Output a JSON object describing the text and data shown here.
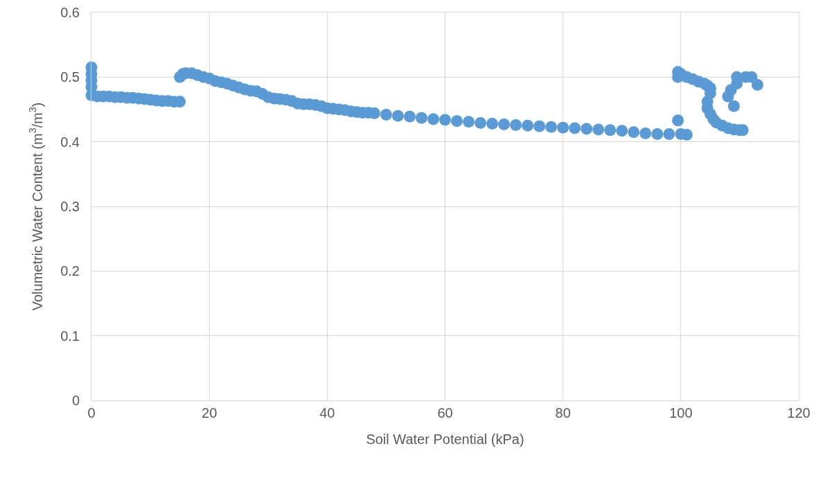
{
  "chart_data": {
    "type": "scatter",
    "xlabel": "Soil Water Potential (kPa)",
    "ylabel": "Volumetric Water Content (m$^{3}$/m$^{3}$)",
    "x": [
      0,
      0,
      0,
      0,
      0,
      1,
      2,
      3,
      4,
      5,
      6,
      7,
      8,
      9,
      10,
      11,
      12,
      13,
      14,
      15,
      15,
      15.5,
      16,
      17,
      18,
      19,
      20,
      21,
      22,
      23,
      24,
      25,
      26,
      27,
      28,
      29,
      30,
      31,
      32,
      33,
      34,
      35,
      36,
      37,
      38,
      39,
      40,
      41,
      42,
      43,
      44,
      45,
      46,
      47,
      48,
      50,
      52,
      54,
      56,
      58,
      60,
      62,
      64,
      66,
      68,
      70,
      72,
      74,
      76,
      78,
      80,
      82,
      84,
      86,
      88,
      90,
      92,
      94,
      96,
      98,
      100,
      101,
      99.5,
      99.5,
      99.5,
      100,
      101,
      102,
      103,
      104,
      104.5,
      105,
      105,
      104.5,
      104.5,
      105,
      105.5,
      106,
      107,
      108,
      109,
      110,
      110.5,
      108,
      108.5,
      109,
      109.5,
      109.5,
      111,
      112,
      113
    ],
    "series": [
      {
        "color": "#5b9bd5",
        "values": [
          0.515,
          0.505,
          0.495,
          0.485,
          0.472,
          0.47,
          0.47,
          0.47,
          0.469,
          0.469,
          0.468,
          0.468,
          0.467,
          0.466,
          0.465,
          0.464,
          0.463,
          0.463,
          0.462,
          0.462,
          0.5,
          0.505,
          0.506,
          0.506,
          0.503,
          0.5,
          0.498,
          0.494,
          0.492,
          0.49,
          0.487,
          0.484,
          0.481,
          0.479,
          0.478,
          0.474,
          0.469,
          0.467,
          0.466,
          0.465,
          0.463,
          0.459,
          0.458,
          0.458,
          0.457,
          0.455,
          0.452,
          0.451,
          0.45,
          0.449,
          0.447,
          0.446,
          0.445,
          0.445,
          0.444,
          0.442,
          0.44,
          0.439,
          0.437,
          0.435,
          0.434,
          0.432,
          0.431,
          0.429,
          0.428,
          0.427,
          0.426,
          0.425,
          0.424,
          0.423,
          0.422,
          0.421,
          0.42,
          0.419,
          0.418,
          0.417,
          0.415,
          0.413,
          0.412,
          0.412,
          0.412,
          0.411,
          0.433,
          0.5,
          0.508,
          0.505,
          0.5,
          0.497,
          0.493,
          0.49,
          0.487,
          0.483,
          0.475,
          0.462,
          0.452,
          0.443,
          0.435,
          0.43,
          0.425,
          0.421,
          0.419,
          0.418,
          0.418,
          0.47,
          0.48,
          0.455,
          0.49,
          0.5,
          0.5,
          0.5,
          0.488
        ]
      }
    ],
    "xlim": [
      0,
      120
    ],
    "xticks": [
      0,
      20,
      40,
      60,
      80,
      100,
      120
    ],
    "ylim": [
      0,
      0.6
    ],
    "yticks": [
      0,
      0.1,
      0.2,
      0.3,
      0.4,
      0.5,
      0.6
    ],
    "grid": true,
    "marker": "circle",
    "legend": false
  }
}
